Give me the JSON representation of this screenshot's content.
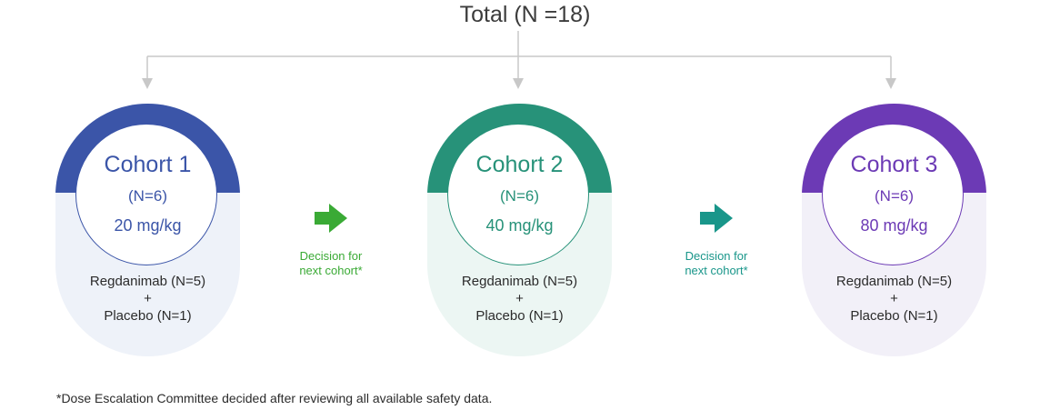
{
  "title": "Total (N =18)",
  "cohorts": [
    {
      "name": "Cohort 1",
      "n": "(N=6)",
      "dose": "20 mg/kg",
      "arm1": "Regdanimab (N=5)",
      "plus": "+",
      "arm2": "Placebo (N=1)",
      "color": "#3b55a8",
      "bg": "#eef2f9"
    },
    {
      "name": "Cohort 2",
      "n": "(N=6)",
      "dose": "40 mg/kg",
      "arm1": "Regdanimab (N=5)",
      "plus": "+",
      "arm2": "Placebo (N=1)",
      "color": "#279279",
      "bg": "#ecf6f3"
    },
    {
      "name": "Cohort 3",
      "n": "(N=6)",
      "dose": "80 mg/kg",
      "arm1": "Regdanimab (N=5)",
      "plus": "+",
      "arm2": "Placebo (N=1)",
      "color": "#6c3ab5",
      "bg": "#f2f0f8"
    }
  ],
  "decisions": [
    {
      "line1": "Decision for",
      "line2": "next cohort*",
      "color": "#3aaa35"
    },
    {
      "line1": "Decision for",
      "line2": "next cohort*",
      "color": "#19968a"
    }
  ],
  "connector_color": "#c8c8c8",
  "footnote": "*Dose Escalation Committee decided after reviewing all available safety data."
}
